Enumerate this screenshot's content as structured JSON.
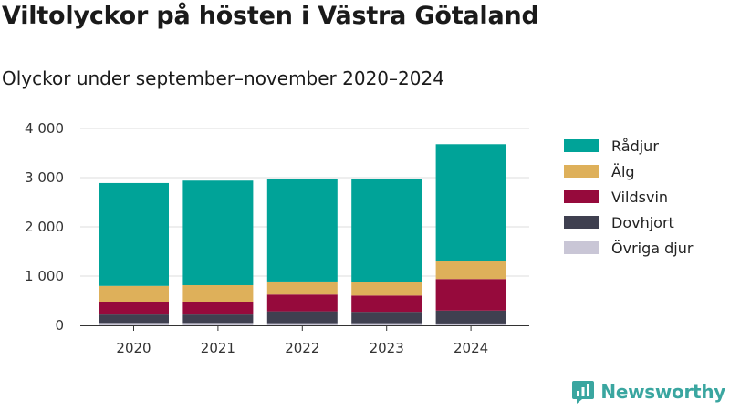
{
  "header": {
    "title": "Viltolyckor på hösten i Västra Götaland",
    "subtitle": "Olyckor under september–november 2020–2024"
  },
  "brand": {
    "name": "Newsworthy",
    "color": "#3aa6a0"
  },
  "chart_data": {
    "type": "bar",
    "stacked": true,
    "categories": [
      "2020",
      "2021",
      "2022",
      "2023",
      "2024"
    ],
    "series": [
      {
        "name": "Övriga djur",
        "color": "#c9c6d6",
        "values": [
          30,
          30,
          25,
          25,
          20
        ]
      },
      {
        "name": "Dovhjort",
        "color": "#3f4050",
        "values": [
          190,
          190,
          260,
          250,
          280
        ]
      },
      {
        "name": "Vildsvin",
        "color": "#960a3c",
        "values": [
          260,
          260,
          340,
          330,
          640
        ]
      },
      {
        "name": "Älg",
        "color": "#deb05a",
        "values": [
          320,
          335,
          265,
          275,
          360
        ]
      },
      {
        "name": "Rådjur",
        "color": "#00a398",
        "values": [
          2090,
          2125,
          2090,
          2100,
          2380
        ]
      }
    ],
    "legend_order": [
      "Rådjur",
      "Älg",
      "Vildsvin",
      "Dovhjort",
      "Övriga djur"
    ],
    "ylim": [
      0,
      4000
    ],
    "yticks": [
      0,
      1000,
      2000,
      3000,
      4000
    ],
    "ytick_labels": [
      "0",
      "1 000",
      "2 000",
      "3 000",
      "4 000"
    ],
    "grid": true,
    "legend_position": "right"
  }
}
